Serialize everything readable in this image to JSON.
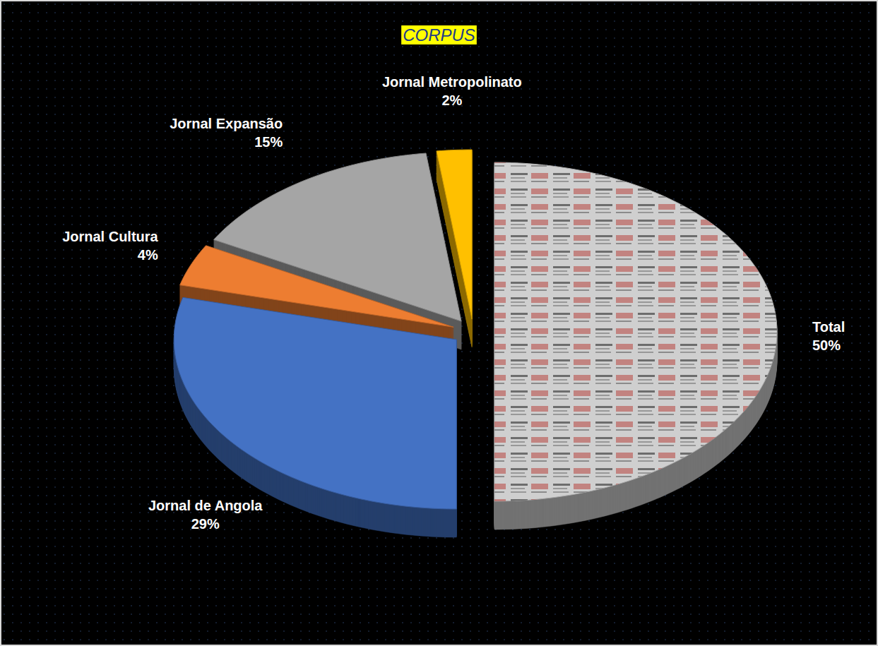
{
  "chart_data": {
    "type": "pie",
    "title": "CORPUS",
    "categories": [
      "Total",
      "Jornal de Angola",
      "Jornal Cultura",
      "Jornal Expansão",
      "Jornal Metropolinato"
    ],
    "values": [
      50,
      29,
      4,
      15,
      2
    ],
    "value_labels": [
      "50%",
      "29%",
      "4%",
      "15%",
      "2%"
    ],
    "colors": [
      "#cfcfcf",
      "#4472c4",
      "#ed7d31",
      "#a5a5a5",
      "#ffc000"
    ],
    "data_labels": true
  }
}
